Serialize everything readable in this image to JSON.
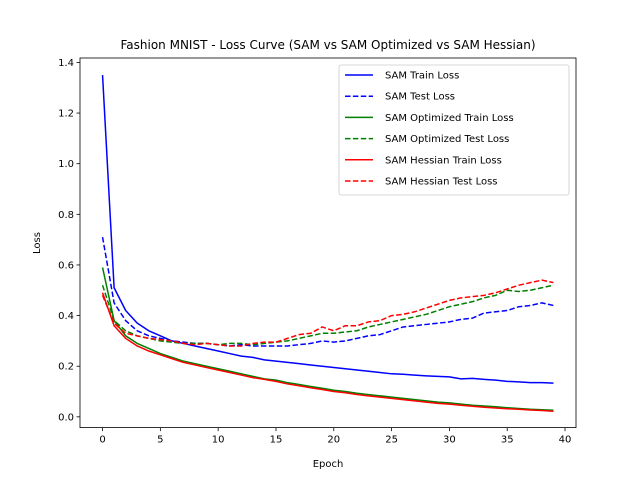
{
  "chart_data": {
    "type": "line",
    "title": "Fashion MNIST - Loss Curve (SAM vs SAM Optimized vs SAM Hessian)",
    "xlabel": "Epoch",
    "ylabel": "Loss",
    "xlim": [
      -1.95,
      40.95
    ],
    "ylim": [
      -0.0425,
      1.4175
    ],
    "xticks": [
      0,
      5,
      10,
      15,
      20,
      25,
      30,
      35,
      40
    ],
    "yticks": [
      0.0,
      0.2,
      0.4,
      0.6,
      0.8,
      1.0,
      1.2,
      1.4
    ],
    "ytick_labels": [
      "0.0",
      "0.2",
      "0.4",
      "0.6",
      "0.8",
      "1.0",
      "1.2",
      "1.4"
    ],
    "grid": false,
    "legend_position": "top-right",
    "x": [
      0,
      1,
      2,
      3,
      4,
      5,
      6,
      7,
      8,
      9,
      10,
      11,
      12,
      13,
      14,
      15,
      16,
      17,
      18,
      19,
      20,
      21,
      22,
      23,
      24,
      25,
      26,
      27,
      28,
      29,
      30,
      31,
      32,
      33,
      34,
      35,
      36,
      37,
      38,
      39
    ],
    "series": [
      {
        "name": "SAM Train Loss",
        "color": "#0000ff",
        "dash": "solid",
        "values": [
          1.35,
          0.51,
          0.42,
          0.37,
          0.34,
          0.32,
          0.3,
          0.29,
          0.28,
          0.27,
          0.26,
          0.25,
          0.24,
          0.235,
          0.225,
          0.22,
          0.215,
          0.21,
          0.205,
          0.2,
          0.195,
          0.19,
          0.185,
          0.18,
          0.175,
          0.17,
          0.168,
          0.165,
          0.162,
          0.16,
          0.158,
          0.15,
          0.152,
          0.148,
          0.145,
          0.14,
          0.138,
          0.135,
          0.135,
          0.133
        ]
      },
      {
        "name": "SAM Test Loss",
        "color": "#0000ff",
        "dash": "dashed",
        "values": [
          0.71,
          0.45,
          0.38,
          0.34,
          0.32,
          0.31,
          0.3,
          0.295,
          0.29,
          0.29,
          0.285,
          0.28,
          0.285,
          0.28,
          0.28,
          0.28,
          0.28,
          0.285,
          0.29,
          0.3,
          0.295,
          0.3,
          0.31,
          0.32,
          0.325,
          0.34,
          0.355,
          0.36,
          0.365,
          0.37,
          0.375,
          0.385,
          0.39,
          0.41,
          0.415,
          0.42,
          0.435,
          0.44,
          0.45,
          0.44
        ]
      },
      {
        "name": "SAM Optimized Train Loss",
        "color": "#008000",
        "dash": "solid",
        "values": [
          0.59,
          0.38,
          0.32,
          0.29,
          0.27,
          0.25,
          0.235,
          0.22,
          0.21,
          0.2,
          0.19,
          0.18,
          0.17,
          0.16,
          0.15,
          0.145,
          0.135,
          0.128,
          0.12,
          0.113,
          0.105,
          0.1,
          0.093,
          0.088,
          0.083,
          0.078,
          0.073,
          0.068,
          0.063,
          0.058,
          0.055,
          0.05,
          0.046,
          0.043,
          0.04,
          0.036,
          0.033,
          0.03,
          0.028,
          0.026
        ]
      },
      {
        "name": "SAM Optimized Test Loss",
        "color": "#008000",
        "dash": "dashed",
        "values": [
          0.52,
          0.38,
          0.34,
          0.32,
          0.31,
          0.3,
          0.295,
          0.29,
          0.29,
          0.29,
          0.285,
          0.29,
          0.29,
          0.285,
          0.29,
          0.295,
          0.3,
          0.31,
          0.32,
          0.33,
          0.33,
          0.335,
          0.34,
          0.355,
          0.365,
          0.375,
          0.385,
          0.395,
          0.405,
          0.42,
          0.435,
          0.445,
          0.455,
          0.47,
          0.48,
          0.5,
          0.495,
          0.5,
          0.51,
          0.52
        ]
      },
      {
        "name": "SAM Hessian Train Loss",
        "color": "#ff0000",
        "dash": "solid",
        "values": [
          0.49,
          0.36,
          0.31,
          0.28,
          0.26,
          0.245,
          0.23,
          0.215,
          0.205,
          0.195,
          0.185,
          0.175,
          0.165,
          0.155,
          0.148,
          0.14,
          0.13,
          0.123,
          0.115,
          0.108,
          0.1,
          0.095,
          0.088,
          0.083,
          0.078,
          0.073,
          0.068,
          0.063,
          0.058,
          0.053,
          0.05,
          0.046,
          0.042,
          0.038,
          0.035,
          0.032,
          0.03,
          0.027,
          0.025,
          0.022
        ]
      },
      {
        "name": "SAM Hessian Test Loss",
        "color": "#ff0000",
        "dash": "dashed",
        "values": [
          0.48,
          0.37,
          0.33,
          0.32,
          0.31,
          0.305,
          0.3,
          0.29,
          0.285,
          0.29,
          0.285,
          0.28,
          0.28,
          0.29,
          0.295,
          0.295,
          0.31,
          0.325,
          0.33,
          0.355,
          0.34,
          0.36,
          0.36,
          0.375,
          0.38,
          0.4,
          0.405,
          0.415,
          0.43,
          0.445,
          0.46,
          0.47,
          0.475,
          0.48,
          0.49,
          0.505,
          0.52,
          0.53,
          0.54,
          0.53
        ]
      }
    ]
  }
}
